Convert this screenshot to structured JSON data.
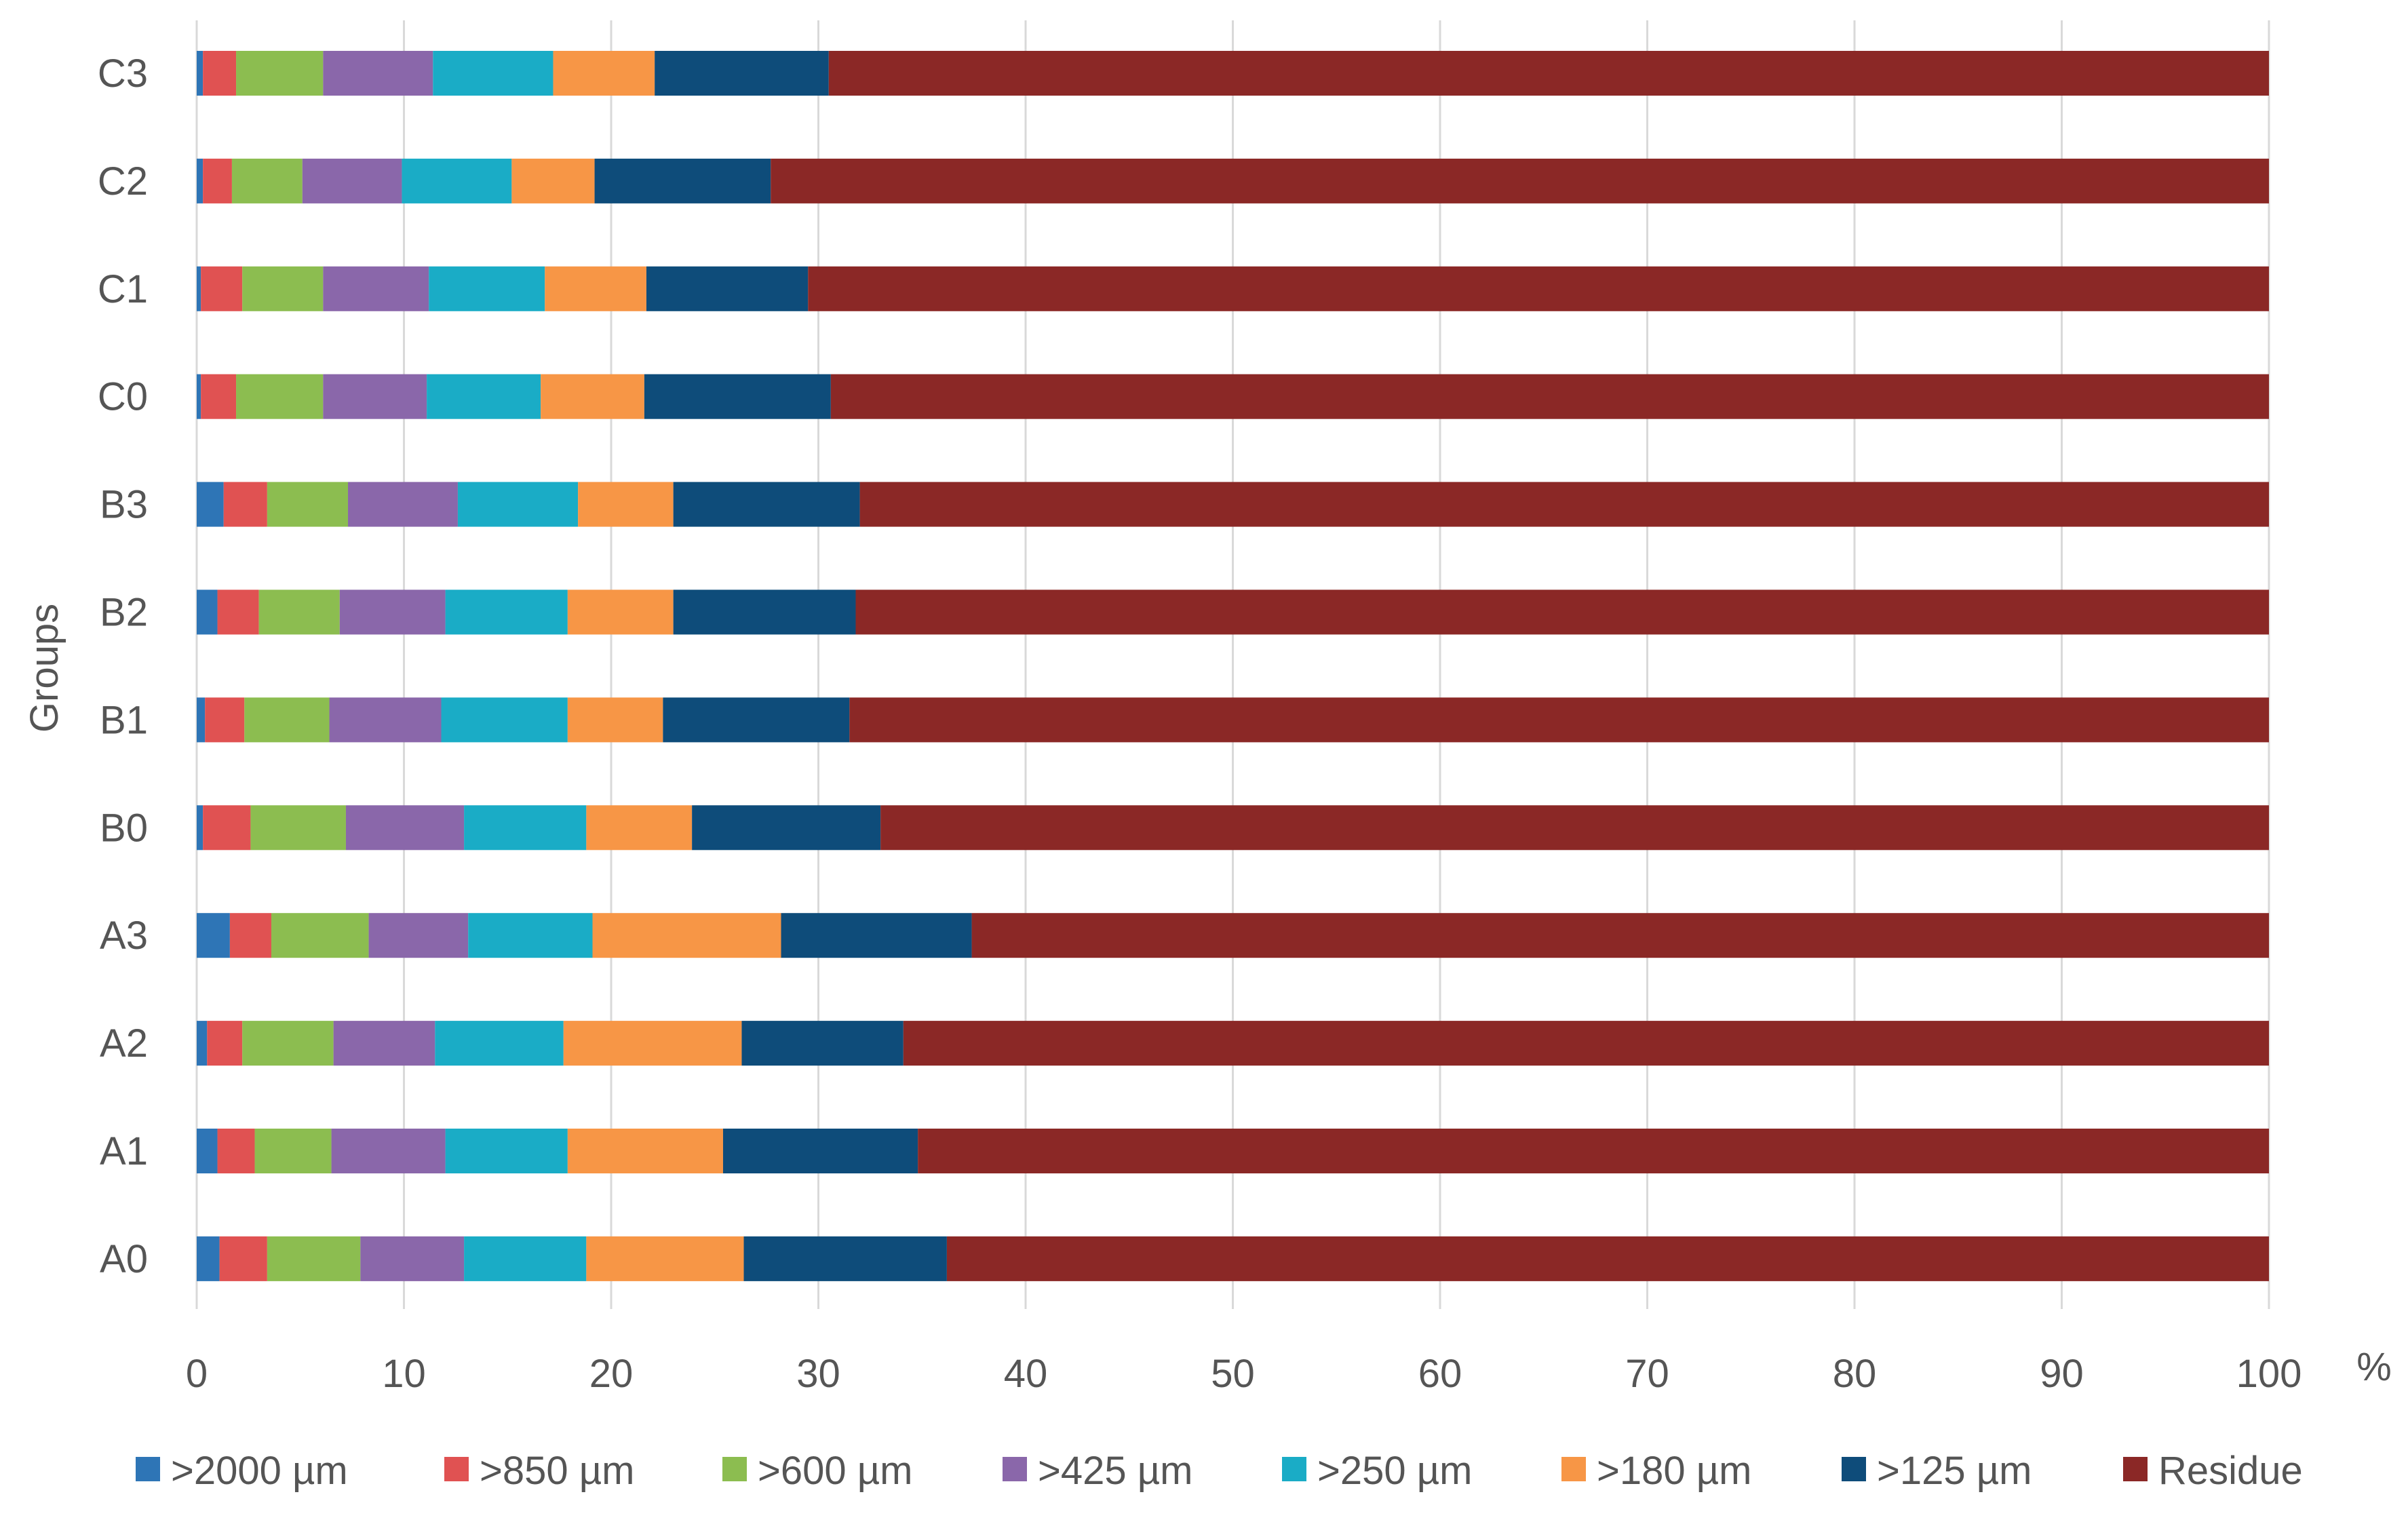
{
  "chart_data": {
    "type": "bar",
    "orientation": "horizontal",
    "stacked": true,
    "title": "",
    "xlabel": "",
    "ylabel": "Groups",
    "x_unit_label": "%",
    "xlim": [
      0,
      100
    ],
    "x_ticks": [
      0,
      10,
      20,
      30,
      40,
      50,
      60,
      70,
      80,
      90,
      100
    ],
    "grid": "vertical",
    "legend_position": "bottom",
    "categories": [
      "A0",
      "A1",
      "A2",
      "A3",
      "B0",
      "B1",
      "B2",
      "B3",
      "C0",
      "C1",
      "C2",
      "C3"
    ],
    "series": [
      {
        "name": ">2000 µm",
        "color": "#2e75b6",
        "values": [
          1.1,
          1.0,
          0.5,
          1.6,
          0.3,
          0.4,
          1.0,
          1.3,
          0.2,
          0.2,
          0.3,
          0.3
        ]
      },
      {
        "name": ">850 µm",
        "color": "#e05252",
        "values": [
          2.3,
          1.8,
          1.7,
          2.0,
          2.3,
          1.9,
          2.0,
          2.1,
          1.7,
          2.0,
          1.4,
          1.6
        ]
      },
      {
        "name": ">600 µm",
        "color": "#8cbd50",
        "values": [
          4.5,
          3.7,
          4.4,
          4.7,
          4.6,
          4.1,
          3.9,
          3.9,
          4.2,
          3.9,
          3.4,
          4.2
        ]
      },
      {
        "name": ">425 µm",
        "color": "#8a67aa",
        "values": [
          5.0,
          5.5,
          4.9,
          4.8,
          5.7,
          5.4,
          5.1,
          5.3,
          5.0,
          5.1,
          4.8,
          5.3
        ]
      },
      {
        "name": ">250 µm",
        "color": "#1aacc6",
        "values": [
          5.9,
          5.9,
          6.2,
          6.0,
          5.9,
          6.1,
          5.9,
          5.8,
          5.5,
          5.6,
          5.3,
          5.8
        ]
      },
      {
        "name": ">180 µm",
        "color": "#f79646",
        "values": [
          7.6,
          7.5,
          8.6,
          9.1,
          5.1,
          4.6,
          5.1,
          4.6,
          5.0,
          4.9,
          4.0,
          4.9
        ]
      },
      {
        "name": ">125 µm",
        "color": "#0e4c7a",
        "values": [
          9.8,
          9.4,
          7.8,
          9.2,
          9.1,
          9.0,
          8.8,
          9.0,
          9.0,
          7.8,
          8.5,
          8.4
        ]
      },
      {
        "name": "Residue",
        "color": "#8b2826",
        "values": [
          63.8,
          65.2,
          65.9,
          62.6,
          67.0,
          68.5,
          68.2,
          68.0,
          69.4,
          70.5,
          72.3,
          69.5
        ]
      }
    ]
  }
}
